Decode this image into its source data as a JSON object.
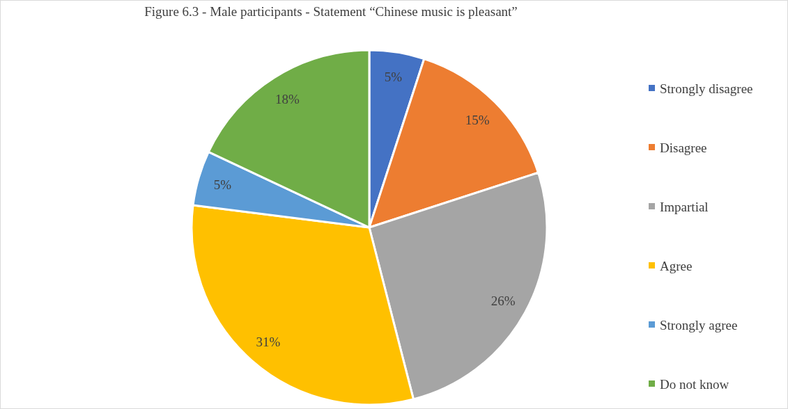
{
  "chart_data": {
    "type": "pie",
    "title": "Figure 6.3 - Male participants - Statement “Chinese music is pleasant”",
    "categories": [
      "Strongly disagree",
      "Disagree",
      "Impartial",
      "Agree",
      "Strongly agree",
      "Do not know"
    ],
    "values": [
      5,
      15,
      26,
      31,
      5,
      18
    ],
    "colors": [
      "#4472c4",
      "#ed7d31",
      "#a5a5a5",
      "#ffc000",
      "#5b9bd5",
      "#70ad47"
    ],
    "value_labels": [
      "5%",
      "15%",
      "26%",
      "31%",
      "5%",
      "18%"
    ],
    "legend": "right"
  }
}
